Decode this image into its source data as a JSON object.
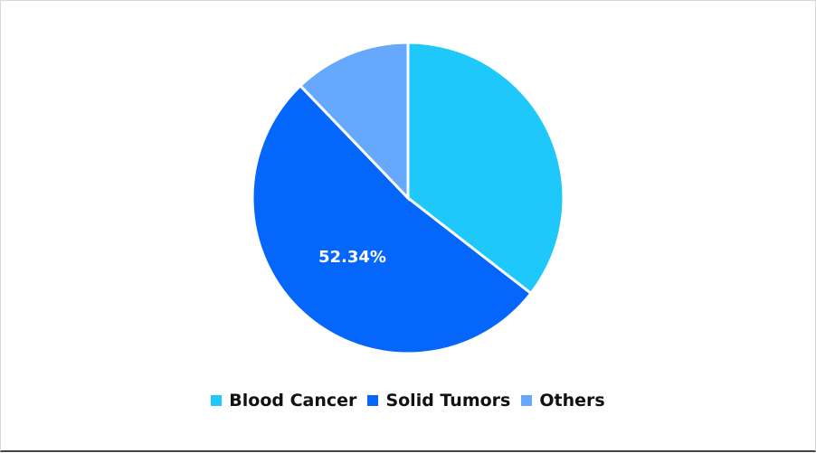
{
  "chart_data": {
    "type": "pie",
    "title": "",
    "categories": [
      "Blood Cancer",
      "Solid Tumors",
      "Others"
    ],
    "values": [
      35.5,
      52.34,
      12.16
    ],
    "colors": [
      "#1ec8fb",
      "#0466fb",
      "#66a8fb"
    ],
    "data_labels": [
      null,
      "52.34%",
      null
    ],
    "legend_position": "bottom"
  },
  "legend": {
    "items": [
      {
        "label": "Blood Cancer",
        "color": "#1ec8fb"
      },
      {
        "label": "Solid Tumors",
        "color": "#0466fb"
      },
      {
        "label": "Others",
        "color": "#66a8fb"
      }
    ]
  },
  "labels": {
    "solid": "52.34%"
  }
}
